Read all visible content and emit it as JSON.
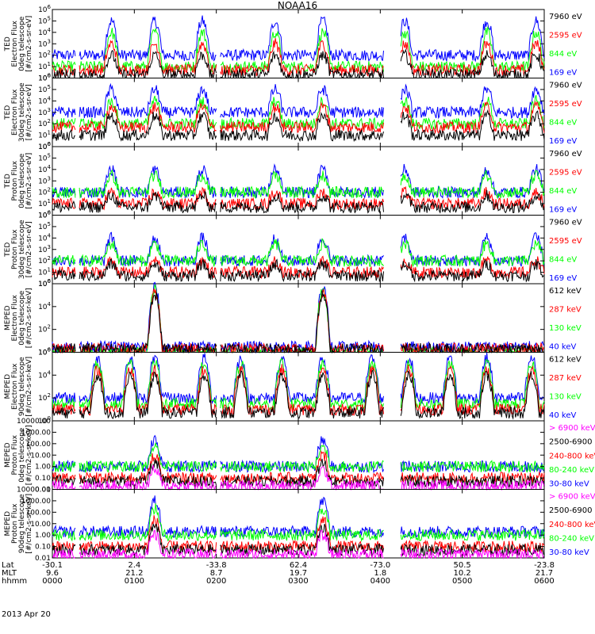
{
  "title": "NOAA16",
  "date_label": "2013 Apr 20",
  "footer": {
    "row_labels": [
      "Lat",
      "MLT",
      "hhmm"
    ],
    "lat": [
      "-30.1",
      "2.4",
      "-33.8",
      "62.4",
      "-73.0",
      "50.5",
      "-23.8"
    ],
    "mlt": [
      "9.6",
      "21.2",
      "8.7",
      "19.7",
      "1.8",
      "10.2",
      "21.7"
    ],
    "hhmm": [
      "0000",
      "0100",
      "0200",
      "0300",
      "0400",
      "0500",
      "0600"
    ]
  },
  "colors": {
    "black": "#000000",
    "red": "#ff0000",
    "green": "#00ff00",
    "blue": "#0000ff",
    "magenta": "#ff00ff"
  },
  "chart_data": [
    {
      "type": "line",
      "scale": "log",
      "ylim": [
        1,
        1000000
      ],
      "ylabel": [
        "TED",
        "Electron Flux",
        "0deg telescope",
        "[#/cm2-s-sr-eV]"
      ],
      "yticks": [
        "10^0",
        "10^1",
        "10^2",
        "10^3",
        "10^4",
        "10^5",
        "10^6"
      ],
      "legend": [
        {
          "label": "7960 eV",
          "color": "#000000"
        },
        {
          "label": "2595 eV",
          "color": "#ff0000"
        },
        {
          "label": "844 eV",
          "color": "#00ff00"
        },
        {
          "label": "169 eV",
          "color": "#0000ff"
        }
      ],
      "x_hours": [
        0,
        6
      ],
      "peaks_hours": [
        0.72,
        1.25,
        1.83,
        2.72,
        3.3,
        4.3,
        5.3,
        5.9
      ],
      "series": [
        {
          "name": "169 eV",
          "color": "#0000ff",
          "base": 100,
          "peak": 100000
        },
        {
          "name": "844 eV",
          "color": "#00ff00",
          "base": 10,
          "peak": 10000
        },
        {
          "name": "2595 eV",
          "color": "#ff0000",
          "base": 5,
          "peak": 1000
        },
        {
          "name": "7960 eV",
          "color": "#000000",
          "base": 2,
          "peak": 100
        }
      ]
    },
    {
      "type": "line",
      "scale": "log",
      "ylim": [
        1,
        1000000
      ],
      "ylabel": [
        "TED",
        "Electron Flux",
        "30deg telescope",
        "[#/cm2-s-sr-eV]"
      ],
      "yticks": [
        "10^0",
        "10^1",
        "10^2",
        "10^3",
        "10^4",
        "10^5",
        "10^6"
      ],
      "legend": [
        {
          "label": "7960 eV",
          "color": "#000000"
        },
        {
          "label": "2595 eV",
          "color": "#ff0000"
        },
        {
          "label": "844 eV",
          "color": "#00ff00"
        },
        {
          "label": "169 eV",
          "color": "#0000ff"
        }
      ],
      "x_hours": [
        0,
        6
      ],
      "peaks_hours": [
        0.72,
        1.25,
        1.83,
        2.72,
        3.3,
        4.3,
        5.3,
        5.9
      ],
      "series": [
        {
          "name": "169 eV",
          "color": "#0000ff",
          "base": 1000,
          "peak": 100000
        },
        {
          "name": "844 eV",
          "color": "#00ff00",
          "base": 100,
          "peak": 10000
        },
        {
          "name": "2595 eV",
          "color": "#ff0000",
          "base": 50,
          "peak": 3000
        },
        {
          "name": "7960 eV",
          "color": "#000000",
          "base": 10,
          "peak": 500
        }
      ]
    },
    {
      "type": "line",
      "scale": "log",
      "ylim": [
        1,
        1000000
      ],
      "ylabel": [
        "TED",
        "Proton Flux",
        "0deg telescope",
        "[#/cm2-s-sr-eV]"
      ],
      "yticks": [
        "10^0",
        "10^1",
        "10^2",
        "10^3",
        "10^4",
        "10^5",
        "10^6"
      ],
      "legend": [
        {
          "label": "7960 eV",
          "color": "#000000"
        },
        {
          "label": "2595 eV",
          "color": "#ff0000"
        },
        {
          "label": "844 eV",
          "color": "#00ff00"
        },
        {
          "label": "169 eV",
          "color": "#0000ff"
        }
      ],
      "x_hours": [
        0,
        6
      ],
      "peaks_hours": [
        0.72,
        1.25,
        1.83,
        2.72,
        3.3,
        4.3,
        5.3,
        5.9
      ],
      "series": [
        {
          "name": "169 eV",
          "color": "#0000ff",
          "base": 100,
          "peak": 10000
        },
        {
          "name": "844 eV",
          "color": "#00ff00",
          "base": 100,
          "peak": 3000
        },
        {
          "name": "2595 eV",
          "color": "#ff0000",
          "base": 10,
          "peak": 100
        },
        {
          "name": "7960 eV",
          "color": "#000000",
          "base": 5,
          "peak": 50
        }
      ]
    },
    {
      "type": "line",
      "scale": "log",
      "ylim": [
        1,
        1000000
      ],
      "ylabel": [
        "TED",
        "Proton Flux",
        "30deg telescope",
        "[#/cm2-s-sr-eV]"
      ],
      "yticks": [
        "10^0",
        "10^1",
        "10^2",
        "10^3",
        "10^4",
        "10^5",
        "10^6"
      ],
      "legend": [
        {
          "label": "7960 eV",
          "color": "#000000"
        },
        {
          "label": "2595 eV",
          "color": "#ff0000"
        },
        {
          "label": "844 eV",
          "color": "#00ff00"
        },
        {
          "label": "169 eV",
          "color": "#0000ff"
        }
      ],
      "x_hours": [
        0,
        6
      ],
      "peaks_hours": [
        0.72,
        1.25,
        1.83,
        2.72,
        3.3,
        4.3,
        5.3,
        5.9
      ],
      "series": [
        {
          "name": "169 eV",
          "color": "#0000ff",
          "base": 100,
          "peak": 10000
        },
        {
          "name": "844 eV",
          "color": "#00ff00",
          "base": 100,
          "peak": 3000
        },
        {
          "name": "2595 eV",
          "color": "#ff0000",
          "base": 10,
          "peak": 100
        },
        {
          "name": "7960 eV",
          "color": "#000000",
          "base": 5,
          "peak": 50
        }
      ]
    },
    {
      "type": "line",
      "scale": "log",
      "ylim": [
        1,
        1000000
      ],
      "ylabel": [
        "MEPED",
        "Electron Flux",
        "0deg telescope",
        "[#/cm2-s-sr-keV]"
      ],
      "yticks": [
        "10^0",
        "10^2",
        "10^4",
        "10^6"
      ],
      "legend": [
        {
          "label": "612 keV",
          "color": "#000000"
        },
        {
          "label": "287 keV",
          "color": "#ff0000"
        },
        {
          "label": "130 keV",
          "color": "#00ff00"
        },
        {
          "label": "40 keV",
          "color": "#0000ff"
        }
      ],
      "x_hours": [
        0,
        6
      ],
      "peaks_hours": [
        1.25,
        3.3
      ],
      "series": [
        {
          "name": "40 keV",
          "color": "#0000ff",
          "base": 3,
          "peak": 500000
        },
        {
          "name": "130 keV",
          "color": "#00ff00",
          "base": 1,
          "peak": 300000
        },
        {
          "name": "287 keV",
          "color": "#ff0000",
          "base": 2,
          "peak": 200000
        },
        {
          "name": "612 keV",
          "color": "#000000",
          "base": 2,
          "peak": 100000
        }
      ]
    },
    {
      "type": "line",
      "scale": "log",
      "ylim": [
        1,
        1000000
      ],
      "ylabel": [
        "MEPED",
        "Electron Flux",
        "90deg telescope",
        "[#/cm2-s-sr-keV]"
      ],
      "yticks": [
        "10^0",
        "10^2",
        "10^4",
        "10^6"
      ],
      "legend": [
        {
          "label": "612 keV",
          "color": "#000000"
        },
        {
          "label": "287 keV",
          "color": "#ff0000"
        },
        {
          "label": "130 keV",
          "color": "#00ff00"
        },
        {
          "label": "40 keV",
          "color": "#0000ff"
        }
      ],
      "x_hours": [
        0,
        6
      ],
      "peaks_hours": [
        0.55,
        0.95,
        1.25,
        1.85,
        2.3,
        2.8,
        3.3,
        3.9,
        4.35,
        4.85,
        5.3,
        5.85
      ],
      "series": [
        {
          "name": "40 keV",
          "color": "#0000ff",
          "base": 100,
          "peak": 300000
        },
        {
          "name": "130 keV",
          "color": "#00ff00",
          "base": 30,
          "peak": 100000
        },
        {
          "name": "287 keV",
          "color": "#ff0000",
          "base": 10,
          "peak": 30000
        },
        {
          "name": "612 keV",
          "color": "#000000",
          "base": 5,
          "peak": 10000
        }
      ]
    },
    {
      "type": "line",
      "scale": "log",
      "ylim": [
        0.01,
        10000
      ],
      "ylabel": [
        "MEPED",
        "Proton Flux",
        "0deg telescope",
        "[#/cm2-s-sr-keV]"
      ],
      "yticks": [
        "0.01",
        "0.10",
        "1.00",
        "10.00",
        "100.00",
        "1000.00",
        "10000.00"
      ],
      "legend": [
        {
          "label": "> 6900 keV",
          "color": "#ff00ff"
        },
        {
          "label": "2500-6900",
          "color": "#000000"
        },
        {
          "label": "240-800 keV",
          "color": "#ff0000"
        },
        {
          "label": "80-240 keV",
          "color": "#00ff00"
        },
        {
          "label": "30-80 keV",
          "color": "#0000ff"
        }
      ],
      "x_hours": [
        0,
        6
      ],
      "peaks_hours": [
        1.25,
        3.3
      ],
      "series": [
        {
          "name": "30-80 keV",
          "color": "#0000ff",
          "base": 1,
          "peak": 200
        },
        {
          "name": "80-240 keV",
          "color": "#00ff00",
          "base": 1,
          "peak": 50
        },
        {
          "name": "240-800 keV",
          "color": "#ff0000",
          "base": 0.1,
          "peak": 10
        },
        {
          "name": "2500-6900",
          "color": "#000000",
          "base": 0.05,
          "peak": 2
        },
        {
          "name": "> 6900 keV",
          "color": "#ff00ff",
          "base": 0.02,
          "peak": 0.5
        }
      ]
    },
    {
      "type": "line",
      "scale": "log",
      "ylim": [
        0.01,
        10000
      ],
      "ylabel": [
        "MEPED",
        "Proton Flux",
        "90deg telescope",
        "[#/cm2-s-sr-keV]"
      ],
      "yticks": [
        "0.01",
        "0.10",
        "1.00",
        "10.00",
        "100.00",
        "1000.00",
        "10000.00"
      ],
      "legend": [
        {
          "label": "> 6900 keV",
          "color": "#ff00ff"
        },
        {
          "label": "2500-6900",
          "color": "#000000"
        },
        {
          "label": "240-800 keV",
          "color": "#ff0000"
        },
        {
          "label": "80-240 keV",
          "color": "#00ff00"
        },
        {
          "label": "30-80 keV",
          "color": "#0000ff"
        }
      ],
      "x_hours": [
        0,
        6
      ],
      "peaks_hours": [
        1.25,
        3.3
      ],
      "series": [
        {
          "name": "30-80 keV",
          "color": "#0000ff",
          "base": 2,
          "peak": 1000
        },
        {
          "name": "80-240 keV",
          "color": "#00ff00",
          "base": 1,
          "peak": 200
        },
        {
          "name": "240-800 keV",
          "color": "#ff0000",
          "base": 0.1,
          "peak": 20
        },
        {
          "name": "2500-6900",
          "color": "#000000",
          "base": 0.05,
          "peak": 5
        },
        {
          "name": "> 6900 keV",
          "color": "#ff00ff",
          "base": 0.02,
          "peak": 1
        }
      ]
    }
  ]
}
